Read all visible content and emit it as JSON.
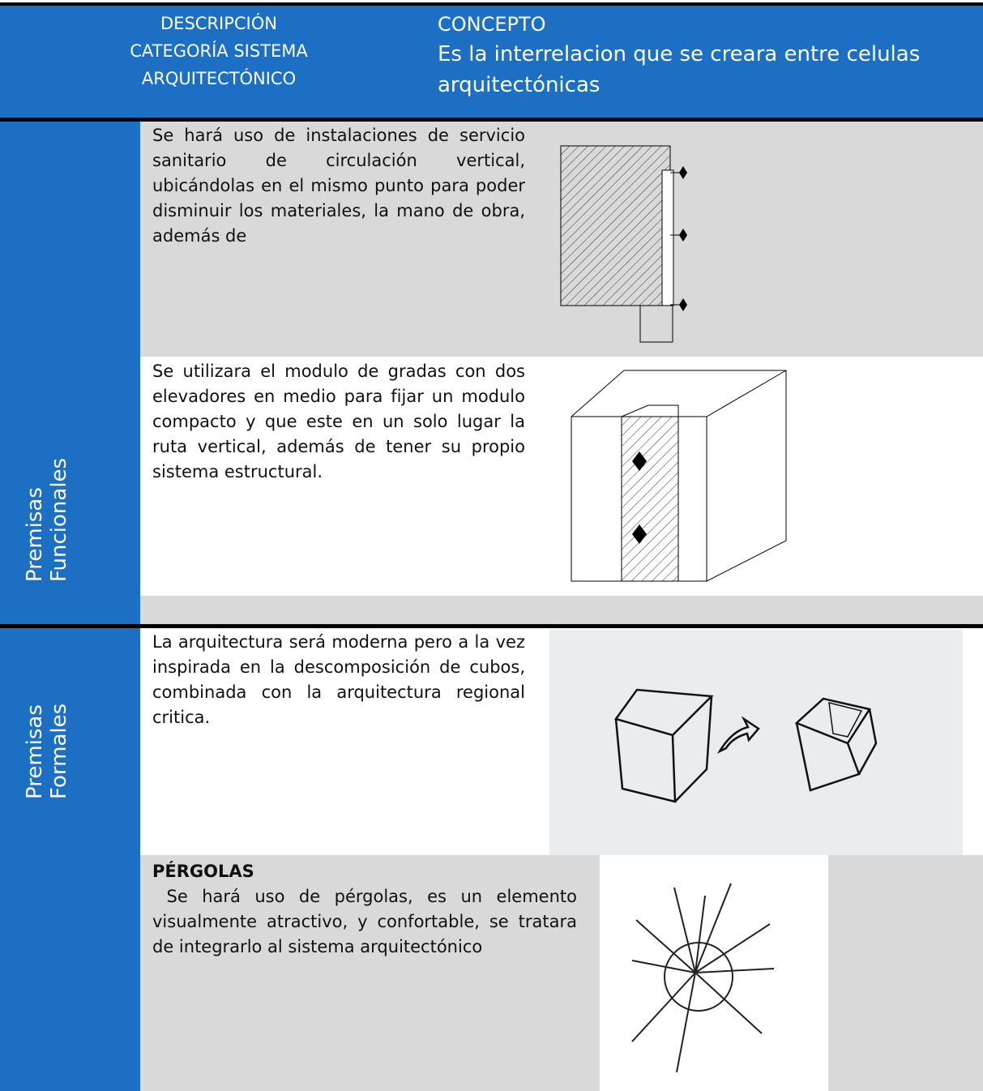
{
  "header": {
    "description": [
      "DESCRIPCIÓN",
      "CATEGORÍA SISTEMA",
      "ARQUITECTÓNICO"
    ],
    "concept_title": "CONCEPTO",
    "concept_text": "Es la interrelacion que se creara entre celulas arquitectónicas"
  },
  "sections": [
    {
      "label": [
        "Premisas",
        "Funcionales"
      ],
      "rows": [
        {
          "text": "Se hará uso de instalaciones de servicio sanitario de circulación vertical, ubicándolas en el mismo punto para poder disminuir los materiales, la mano de obra, además de"
        },
        {
          "text": "Se utilizara el modulo de gradas con dos elevadores en medio para fijar un modulo compacto  y que este en un solo lugar la ruta vertical, además de tener su propio sistema estructural."
        }
      ]
    },
    {
      "label": [
        "Premisas",
        "Formales"
      ],
      "rows": [
        {
          "text": "La arquitectura será moderna pero a la vez inspirada en la descomposición de cubos, combinada con la arquitectura regional critica."
        },
        {
          "title": "PÉRGOLAS",
          "text": " Se hará uso de pérgolas, es un elemento visualmente atractivo, y confortable, se tratara de integrarlo al sistema arquitectónico"
        }
      ]
    }
  ]
}
